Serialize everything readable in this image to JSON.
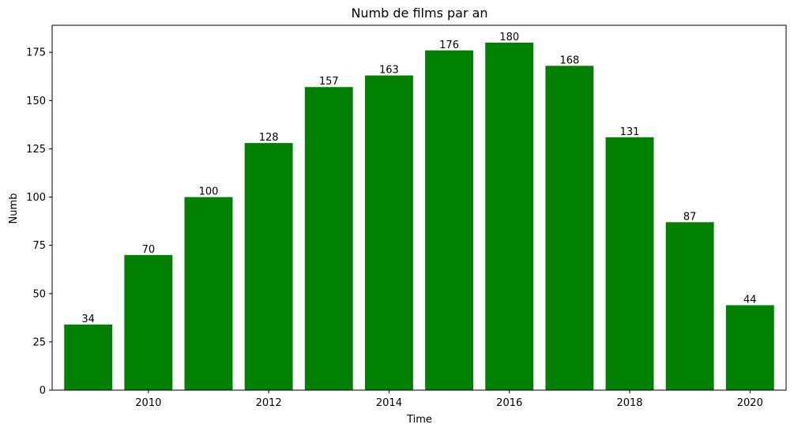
{
  "chart_data": {
    "type": "bar",
    "title": "Numb de films par an",
    "xlabel": "Time",
    "ylabel": "Numb",
    "categories": [
      2009,
      2010,
      2011,
      2012,
      2013,
      2014,
      2015,
      2016,
      2017,
      2018,
      2019,
      2020
    ],
    "values": [
      34,
      70,
      100,
      128,
      157,
      163,
      176,
      180,
      168,
      131,
      87,
      44
    ],
    "xlim": [
      2008.4,
      2020.6
    ],
    "ylim": [
      0,
      189
    ],
    "x_ticks": [
      2010,
      2012,
      2014,
      2016,
      2018,
      2020
    ],
    "y_ticks": [
      0,
      25,
      50,
      75,
      100,
      125,
      150,
      175
    ],
    "bar_color": "#008000",
    "grid": false,
    "data_labels": true
  }
}
